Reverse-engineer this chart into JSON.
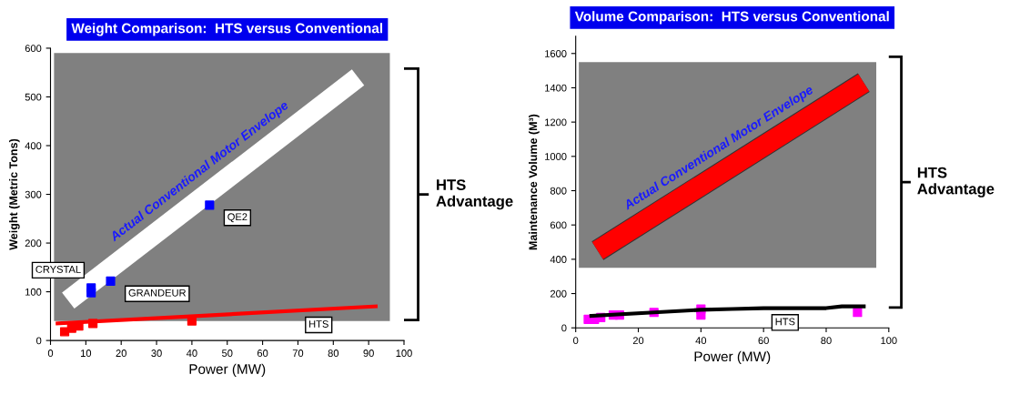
{
  "chart_data": [
    {
      "type": "scatter",
      "title": "Weight Comparison:  HTS versus Conventional",
      "xlabel": "Power (MW)",
      "ylabel": "Weight (Metric Tons)",
      "xlim": [
        0,
        100
      ],
      "xticks": [
        0,
        10,
        20,
        30,
        40,
        50,
        60,
        70,
        80,
        90,
        100
      ],
      "ylim": [
        0,
        600
      ],
      "yticks": [
        0,
        100,
        200,
        300,
        400,
        500,
        600
      ],
      "grid": false,
      "bands": [
        {
          "axis": "y",
          "from": 40,
          "to": 590,
          "color": "#808080"
        }
      ],
      "series": [
        {
          "type": "line",
          "color": "#ffffff",
          "marker": "none",
          "x": [
            5,
            87
          ],
          "values": [
            82,
            540
          ]
        },
        {
          "type": "line",
          "color": "#ff0000",
          "marker": "none",
          "x": [
            2,
            92
          ],
          "values": [
            35,
            70
          ]
        },
        {
          "color": "#ff0000",
          "marker": "square",
          "x": [
            4,
            6,
            8,
            12,
            40
          ],
          "values": [
            18,
            25,
            30,
            35,
            40
          ]
        },
        {
          "color": "#0000ff",
          "marker": "square",
          "x": [
            11.5,
            11.5,
            17,
            45
          ],
          "values": [
            98,
            108,
            122,
            278
          ]
        }
      ],
      "annotations": [
        "Actual Conventional Motor Envelope",
        {
          "text": "CRYSTAL",
          "x": 11.5,
          "y": 108
        },
        {
          "text": "GRANDEUR",
          "x": 17,
          "y": 122
        },
        {
          "text": "QE2",
          "x": 45,
          "y": 278
        },
        {
          "text": "HTS",
          "x": 68,
          "y": 58
        },
        "HTS\nAdvantage"
      ]
    },
    {
      "type": "scatter",
      "title": "Volume Comparison:  HTS versus Conventional",
      "xlabel": "Power (MW)",
      "ylabel": "Maintenance Volume (M³)",
      "xlim": [
        0,
        100
      ],
      "xticks": [
        0,
        20,
        40,
        60,
        80,
        100
      ],
      "ylim": [
        0,
        1700
      ],
      "yticks": [
        0,
        200,
        400,
        600,
        800,
        1000,
        1200,
        1400,
        1600
      ],
      "grid": false,
      "bands": [
        {
          "axis": "y",
          "from": 350,
          "to": 1550,
          "color": "#808080"
        }
      ],
      "series": [
        {
          "type": "line",
          "color": "#ff0000",
          "marker": "none",
          "x": [
            7,
            92
          ],
          "values": [
            450,
            1430
          ]
        },
        {
          "type": "line",
          "color": "#000000",
          "marker": "none",
          "x": [
            5,
            25,
            40,
            50,
            60,
            80,
            85,
            92
          ],
          "values": [
            70,
            90,
            105,
            110,
            115,
            115,
            125,
            125
          ]
        },
        {
          "color": "#ff00ff",
          "marker": "square",
          "x": [
            4,
            6,
            8,
            12,
            14,
            25,
            40,
            40,
            90
          ],
          "values": [
            50,
            50,
            60,
            75,
            75,
            90,
            110,
            75,
            90
          ]
        }
      ],
      "annotations": [
        "Actual Conventional Motor Envelope",
        {
          "text": "HTS",
          "x": 58,
          "y": 105
        },
        "HTS\nAdvantage"
      ]
    }
  ]
}
